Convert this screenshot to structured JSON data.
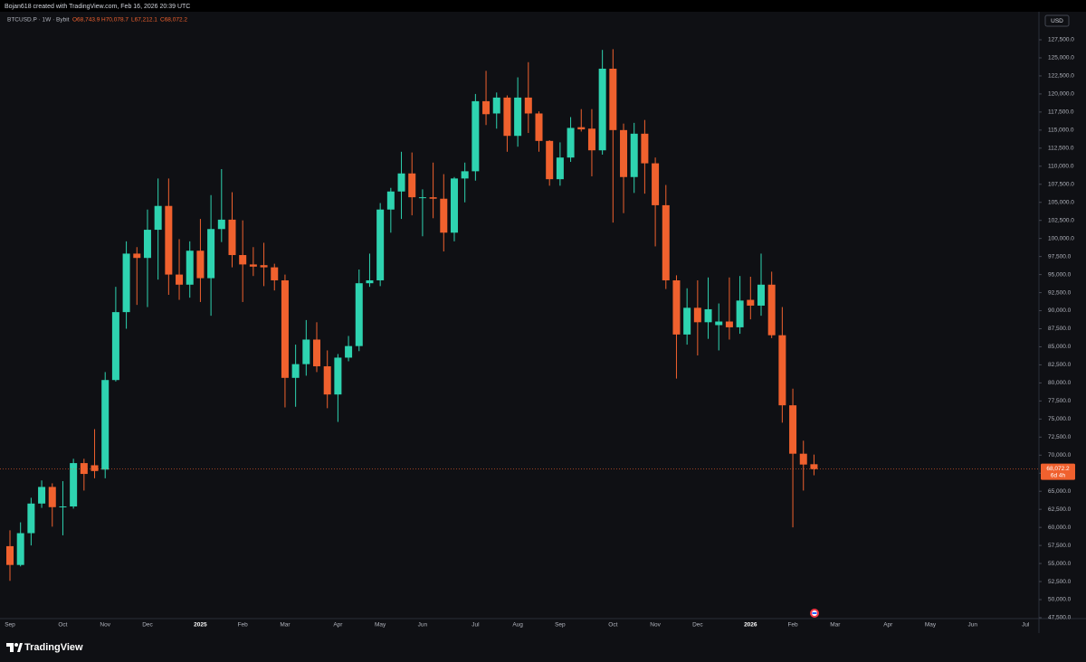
{
  "header": {
    "text": "Bojan618 created with TradingView.com, Feb 16, 2026 20:39 UTC"
  },
  "footer": {
    "logo": "TradingView"
  },
  "chart_data": {
    "type": "candlestick",
    "title": "BTCUSD.P · 1W · Bybit",
    "ohlc_legend": [
      "O68,743.9",
      "H70,078.7",
      "L67,212.1",
      "C68,072.2"
    ],
    "currency": "USD",
    "last_price_label": "68,072.2",
    "countdown": "6d 4h",
    "up_color": "#2ed3b0",
    "down_color": "#f0612e",
    "grid": false,
    "categories": [
      "Sep",
      null,
      null,
      null,
      null,
      "Oct",
      null,
      null,
      null,
      "Nov",
      null,
      null,
      null,
      "Dec",
      null,
      null,
      null,
      null,
      "2025",
      null,
      null,
      null,
      "Feb",
      null,
      null,
      null,
      "Mar",
      null,
      null,
      null,
      null,
      "Apr",
      null,
      null,
      null,
      "May",
      null,
      null,
      null,
      "Jun",
      null,
      null,
      null,
      null,
      "Jul",
      null,
      null,
      null,
      "Aug",
      null,
      null,
      null,
      "Sep",
      null,
      null,
      null,
      null,
      "Oct",
      null,
      null,
      null,
      "Nov",
      null,
      null,
      null,
      "Dec",
      null,
      null,
      null,
      null,
      "2026",
      null,
      null,
      null,
      "Feb",
      null,
      null,
      null,
      "Mar",
      null,
      null,
      null,
      null,
      "Apr",
      null,
      null,
      null,
      "May",
      null,
      null,
      null,
      "Jun",
      null,
      null,
      null,
      null,
      "Jul"
    ],
    "open": [
      57400,
      54800,
      59200,
      63300,
      65600,
      62800,
      62900,
      68900,
      68600,
      68000,
      80400,
      89800,
      97900,
      97300,
      101200,
      104500,
      95000,
      93600,
      98300,
      94500,
      101300,
      102600,
      97700,
      96400,
      96300,
      96000,
      94200,
      80700,
      82600,
      86000,
      82300,
      78400,
      83500,
      85100,
      93800,
      94200,
      104000,
      106500,
      109000,
      105600,
      105700,
      105500,
      100800,
      108300,
      109300,
      119000,
      117300,
      119500,
      114200,
      119500,
      117300,
      113500,
      108200,
      111200,
      115400,
      115200,
      112200,
      123500,
      115000,
      108500,
      114500,
      110400,
      104600,
      94200,
      86700,
      90400,
      88400,
      88000,
      88500,
      87700,
      91500,
      90700,
      93600,
      86600,
      76900,
      70200,
      68743.9,
      null,
      null,
      null,
      null,
      null,
      null,
      null,
      null,
      null,
      null,
      null,
      null,
      null,
      null,
      null,
      null,
      null,
      null,
      null,
      null
    ],
    "high": [
      59600,
      60700,
      64100,
      66500,
      66100,
      66400,
      69500,
      69500,
      73600,
      81500,
      93300,
      99600,
      98800,
      104000,
      108300,
      108300,
      99900,
      99600,
      102700,
      106000,
      109600,
      106400,
      102500,
      98800,
      99400,
      96500,
      95000,
      85300,
      88700,
      88400,
      84500,
      84000,
      86500,
      95700,
      97900,
      104900,
      107000,
      112000,
      111900,
      106800,
      110500,
      108900,
      108500,
      110500,
      120000,
      123200,
      120200,
      119800,
      122300,
      124400,
      117600,
      113600,
      113300,
      116800,
      117900,
      117900,
      126100,
      126200,
      115900,
      116000,
      116400,
      111200,
      107400,
      94900,
      93100,
      94200,
      94600,
      91000,
      94600,
      94800,
      94700,
      97900,
      95400,
      90500,
      79200,
      72000,
      70078.7,
      null,
      null,
      null,
      null,
      null,
      null,
      null,
      null,
      null,
      null,
      null,
      null,
      null,
      null,
      null,
      null,
      null,
      null,
      null,
      null
    ],
    "low": [
      52600,
      54600,
      57500,
      62700,
      60100,
      58900,
      62600,
      65100,
      66800,
      66800,
      80200,
      87500,
      90800,
      90500,
      94300,
      92200,
      91500,
      91800,
      91200,
      89300,
      99500,
      96000,
      91200,
      94800,
      93400,
      92800,
      76600,
      76700,
      81000,
      81500,
      76500,
      74600,
      83000,
      84400,
      93300,
      93400,
      100800,
      102700,
      103200,
      100300,
      102800,
      98200,
      99600,
      105000,
      108000,
      115700,
      115200,
      112000,
      112700,
      114600,
      112000,
      107300,
      107300,
      110600,
      114800,
      108600,
      111600,
      102200,
      103500,
      106300,
      106200,
      98900,
      93000,
      80600,
      85300,
      83800,
      86100,
      84500,
      86000,
      86800,
      88800,
      89300,
      86200,
      74500,
      60000,
      65100,
      67212.1,
      null,
      null,
      null,
      null,
      null,
      null,
      null,
      null,
      null,
      null,
      null,
      null,
      null,
      null,
      null,
      null,
      null,
      null,
      null,
      null
    ],
    "close": [
      54800,
      59200,
      63300,
      65600,
      62800,
      62900,
      68900,
      67400,
      67800,
      80400,
      89800,
      97900,
      97300,
      101200,
      104500,
      95000,
      93600,
      98300,
      94500,
      101300,
      102600,
      97700,
      96400,
      96100,
      96000,
      94200,
      80700,
      82600,
      86000,
      82300,
      78400,
      83500,
      85100,
      93800,
      94200,
      104000,
      106500,
      109000,
      105700,
      105700,
      105500,
      100800,
      108300,
      109300,
      119000,
      117200,
      119500,
      114200,
      119500,
      117300,
      113500,
      108200,
      111200,
      115300,
      115100,
      112200,
      123500,
      115000,
      108500,
      114500,
      110400,
      104600,
      94200,
      86700,
      90400,
      88400,
      90200,
      88500,
      87700,
      91400,
      90700,
      93600,
      86600,
      76900,
      70200,
      68700,
      68072.2,
      null,
      null,
      null,
      null,
      null,
      null,
      null,
      null,
      null,
      null,
      null,
      null,
      null,
      null,
      null,
      null,
      null,
      null,
      null,
      null
    ],
    "ylim": [
      47124,
      131256
    ],
    "yticks": [
      {
        "value": 47500,
        "label": "47,500.0"
      },
      {
        "value": 50000,
        "label": "50,000.0"
      },
      {
        "value": 52500,
        "label": "52,500.0"
      },
      {
        "value": 55000,
        "label": "55,000.0"
      },
      {
        "value": 57500,
        "label": "57,500.0"
      },
      {
        "value": 60000,
        "label": "60,000.0"
      },
      {
        "value": 62500,
        "label": "62,500.0"
      },
      {
        "value": 65000,
        "label": "65,000.0"
      },
      {
        "value": 67500,
        "label": "67,500.0"
      },
      {
        "value": 70000,
        "label": "70,000.0"
      },
      {
        "value": 72500,
        "label": "72,500.0"
      },
      {
        "value": 75000,
        "label": "75,000.0"
      },
      {
        "value": 77500,
        "label": "77,500.0"
      },
      {
        "value": 80000,
        "label": "80,000.0"
      },
      {
        "value": 82500,
        "label": "82,500.0"
      },
      {
        "value": 85000,
        "label": "85,000.0"
      },
      {
        "value": 87500,
        "label": "87,500.0"
      },
      {
        "value": 90000,
        "label": "90,000.0"
      },
      {
        "value": 92500,
        "label": "92,500.0"
      },
      {
        "value": 95000,
        "label": "95,000.0"
      },
      {
        "value": 97500,
        "label": "97,500.0"
      },
      {
        "value": 100000,
        "label": "100,000.0"
      },
      {
        "value": 102500,
        "label": "102,500.0"
      },
      {
        "value": 105000,
        "label": "105,000.0"
      },
      {
        "value": 107500,
        "label": "107,500.0"
      },
      {
        "value": 110000,
        "label": "110,000.0"
      },
      {
        "value": 112500,
        "label": "112,500.0"
      },
      {
        "value": 115000,
        "label": "115,000.0"
      },
      {
        "value": 117500,
        "label": "117,500.0"
      },
      {
        "value": 120000,
        "label": "120,000.0"
      },
      {
        "value": 122500,
        "label": "122,500.0"
      },
      {
        "value": 125000,
        "label": "125,000.0"
      },
      {
        "value": 127500,
        "label": "127,500.0"
      }
    ]
  }
}
